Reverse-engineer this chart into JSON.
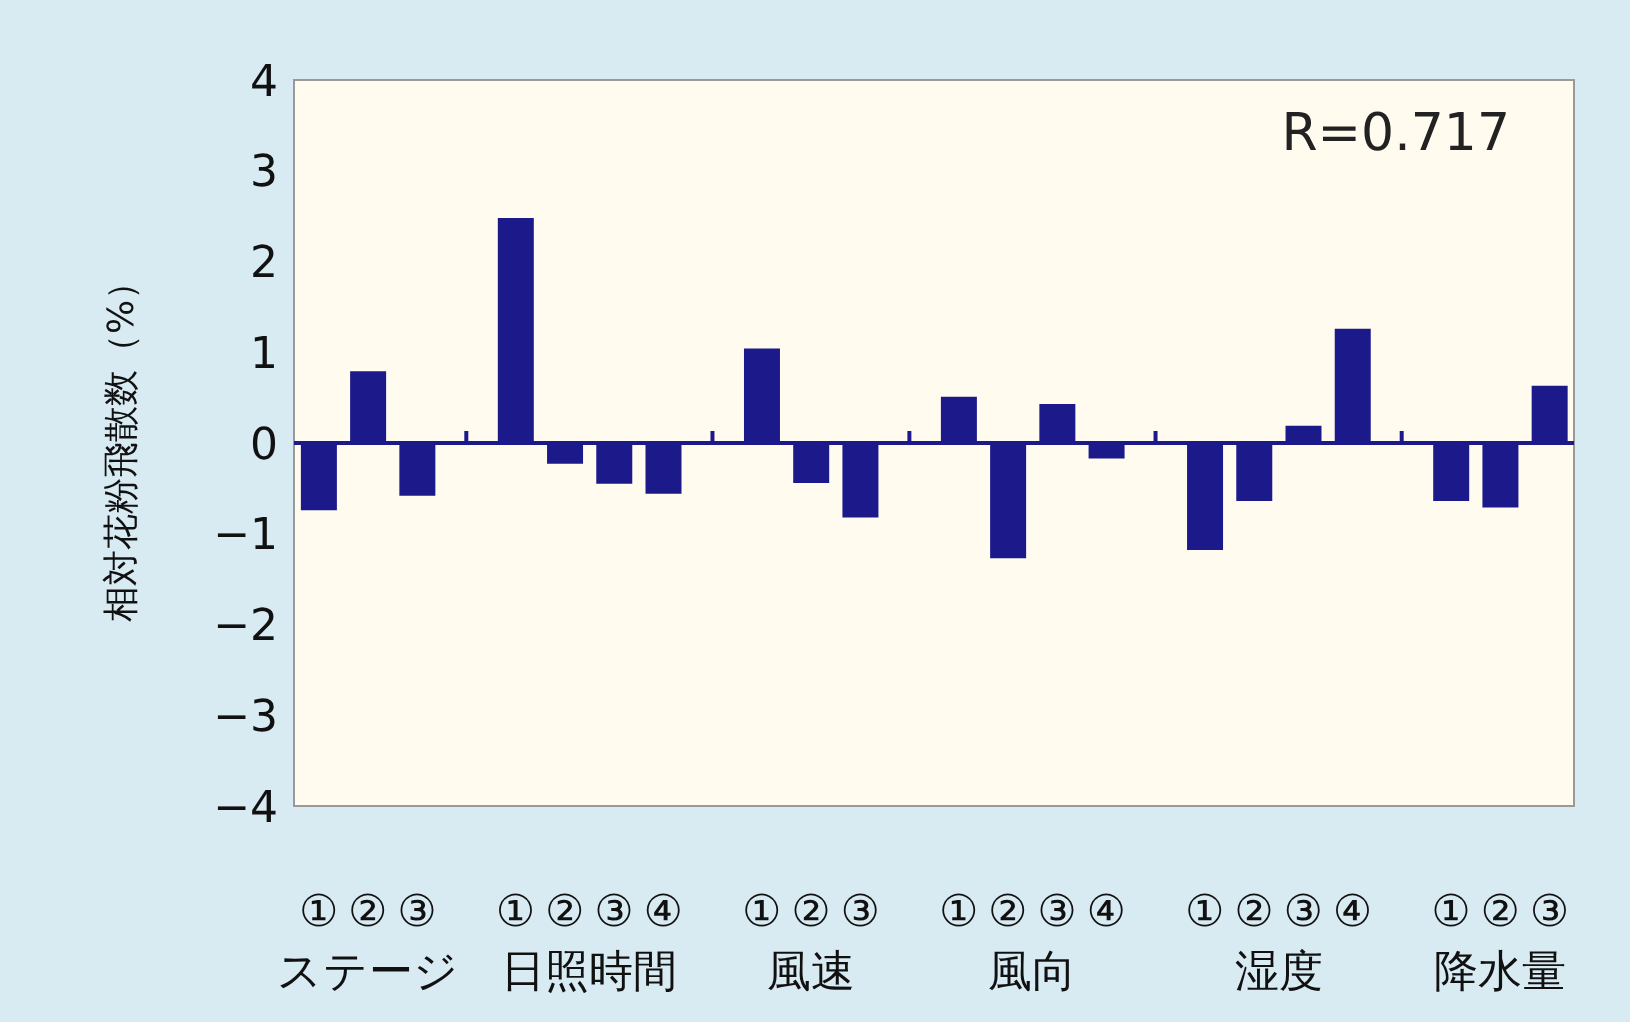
{
  "chart_data": {
    "type": "bar",
    "ylabel": "相対花粉飛散数（%）",
    "categories": [
      "①",
      "②",
      "③",
      null,
      "①",
      "②",
      "③",
      "④",
      null,
      "①",
      "②",
      "③",
      null,
      "①",
      "②",
      "③",
      "④",
      null,
      "①",
      "②",
      "③",
      "④",
      null,
      "①",
      "②",
      "③"
    ],
    "values": [
      -0.74,
      0.79,
      -0.58,
      null,
      2.48,
      -0.23,
      -0.45,
      -0.56,
      null,
      1.04,
      -0.44,
      -0.82,
      null,
      0.51,
      -1.27,
      0.43,
      -0.17,
      null,
      -1.18,
      -0.64,
      0.19,
      1.26,
      null,
      -0.64,
      -0.71,
      0.63
    ],
    "color": "#1c1a8a",
    "ylim": [
      -4,
      4
    ],
    "yticks": [
      -4,
      -3,
      -2,
      -1,
      0,
      1,
      2,
      3,
      4
    ],
    "ref_lines": [
      {
        "axis": "y",
        "value": 0,
        "color": "#1c1a8a"
      }
    ],
    "annotations": [
      "R=0.717",
      "ステージ",
      "日照時間",
      "風速",
      "風向",
      "湿度",
      "降水量"
    ]
  }
}
